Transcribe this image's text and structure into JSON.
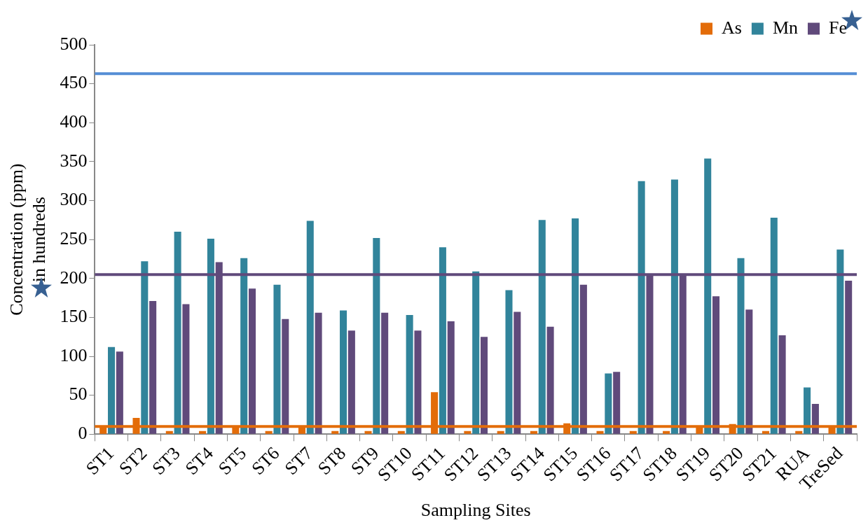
{
  "chart_data": {
    "type": "bar",
    "xlabel": "Sampling Sites",
    "ylabel": "Concentration (ppm)\nin hundreds",
    "categories": [
      "ST1",
      "ST2",
      "ST3",
      "ST4",
      "ST5",
      "ST6",
      "ST7",
      "ST8",
      "ST9",
      "ST10",
      "ST11",
      "ST12",
      "ST13",
      "ST14",
      "ST15",
      "ST16",
      "ST17",
      "ST18",
      "ST19",
      "ST20",
      "ST21",
      "RUA",
      "TreSed"
    ],
    "series": [
      {
        "name": "As",
        "color": "#e36c09",
        "values": [
          10,
          21,
          4,
          4,
          10,
          4,
          10,
          4,
          4,
          4,
          54,
          4,
          4,
          4,
          14,
          4,
          4,
          4,
          10,
          13,
          4,
          4,
          10
        ]
      },
      {
        "name": "Mn",
        "color": "#31849b",
        "values": [
          112,
          222,
          260,
          251,
          226,
          192,
          274,
          159,
          252,
          153,
          240,
          209,
          185,
          275,
          277,
          78,
          325,
          327,
          354,
          226,
          278,
          60,
          237
        ]
      },
      {
        "name": "Fe",
        "color": "#604a7b",
        "values": [
          106,
          171,
          167,
          221,
          187,
          148,
          156,
          133,
          156,
          133,
          145,
          125,
          157,
          138,
          192,
          80,
          205,
          205,
          177,
          160,
          127,
          39,
          197
        ]
      }
    ],
    "ylim": [
      0,
      500
    ],
    "yticks": [
      0,
      50,
      100,
      150,
      200,
      250,
      300,
      350,
      400,
      450,
      500
    ],
    "grid": false,
    "legend": "top right",
    "ref_lines": [
      {
        "axis": "y",
        "value": 463,
        "color": "#558ed5"
      },
      {
        "axis": "y",
        "value": 205,
        "color": "#604a7b"
      },
      {
        "axis": "y",
        "value": 10,
        "color": "#e36c09"
      }
    ]
  }
}
